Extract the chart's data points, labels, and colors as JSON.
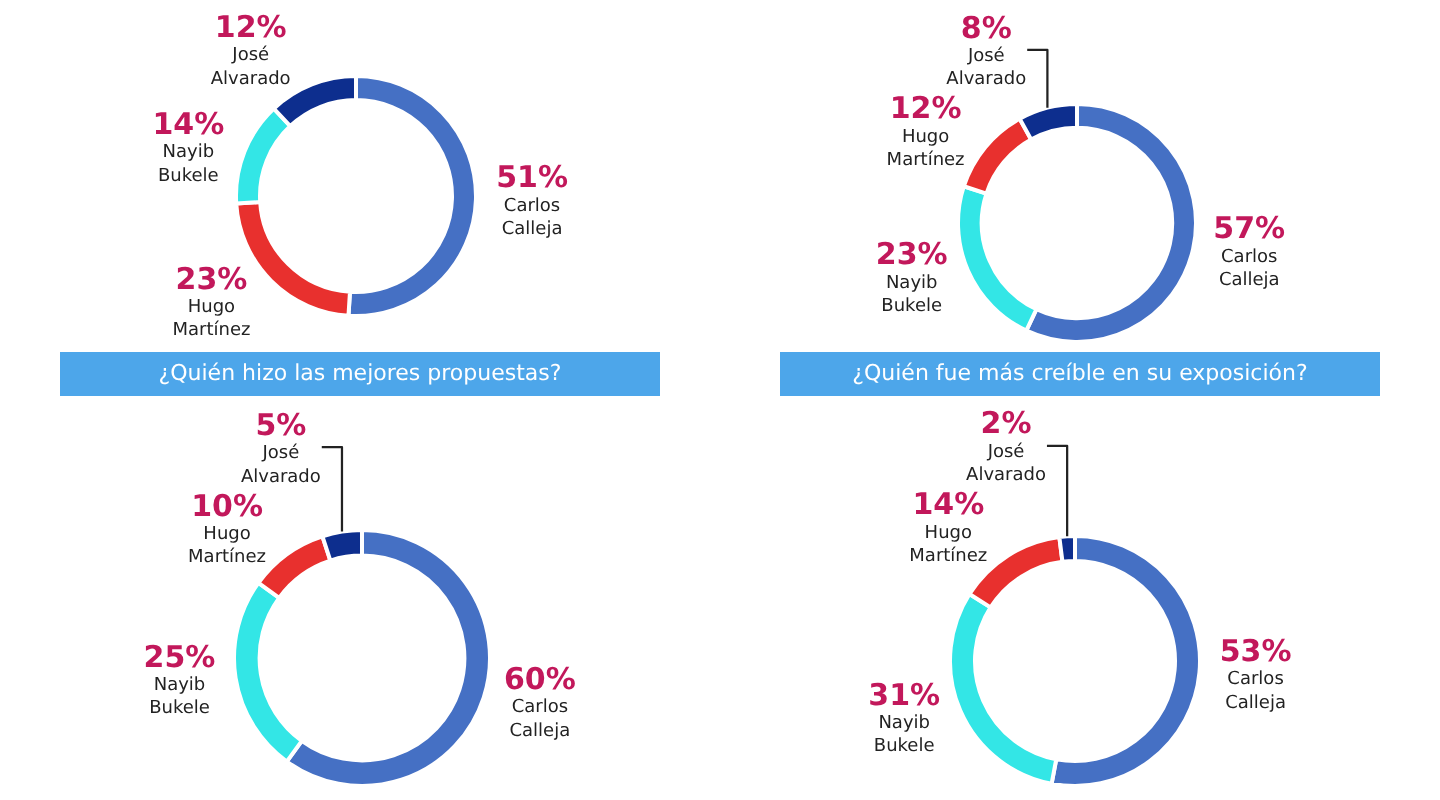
{
  "chart_data": [
    {
      "type": "donut",
      "categories": [
        "Carlos Calleja",
        "Hugo Martínez",
        "Nayib Bukele",
        "José Alvarado"
      ],
      "values": [
        51,
        23,
        14,
        12
      ],
      "value_labels": [
        "51%",
        "23%",
        "14%",
        "12%"
      ],
      "colors": [
        "#4570c4",
        "#e8302e",
        "#33e6e6",
        "#0d2e8e"
      ]
    },
    {
      "type": "donut",
      "categories": [
        "Carlos Calleja",
        "Nayib Bukele",
        "Hugo Martínez",
        "José Alvarado"
      ],
      "values": [
        57,
        23,
        12,
        8
      ],
      "value_labels": [
        "57%",
        "23%",
        "12%",
        "8%"
      ],
      "colors": [
        "#4570c4",
        "#33e6e6",
        "#e8302e",
        "#0d2e8e"
      ]
    },
    {
      "type": "donut",
      "title": "¿Quién hizo las mejores propuestas?",
      "categories": [
        "Carlos Calleja",
        "Nayib Bukele",
        "Hugo Martínez",
        "José Alvarado"
      ],
      "values": [
        60,
        25,
        10,
        5
      ],
      "value_labels": [
        "60%",
        "25%",
        "10%",
        "5%"
      ],
      "colors": [
        "#4570c4",
        "#33e6e6",
        "#e8302e",
        "#0d2e8e"
      ]
    },
    {
      "type": "donut",
      "title": "¿Quién fue más creíble en su exposición?",
      "categories": [
        "Carlos Calleja",
        "Nayib Bukele",
        "Hugo Martínez",
        "José Alvarado"
      ],
      "values": [
        53,
        31,
        14,
        2
      ],
      "value_labels": [
        "53%",
        "31%",
        "14%",
        "2%"
      ],
      "colors": [
        "#4570c4",
        "#33e6e6",
        "#e8302e",
        "#0d2e8e"
      ]
    }
  ]
}
